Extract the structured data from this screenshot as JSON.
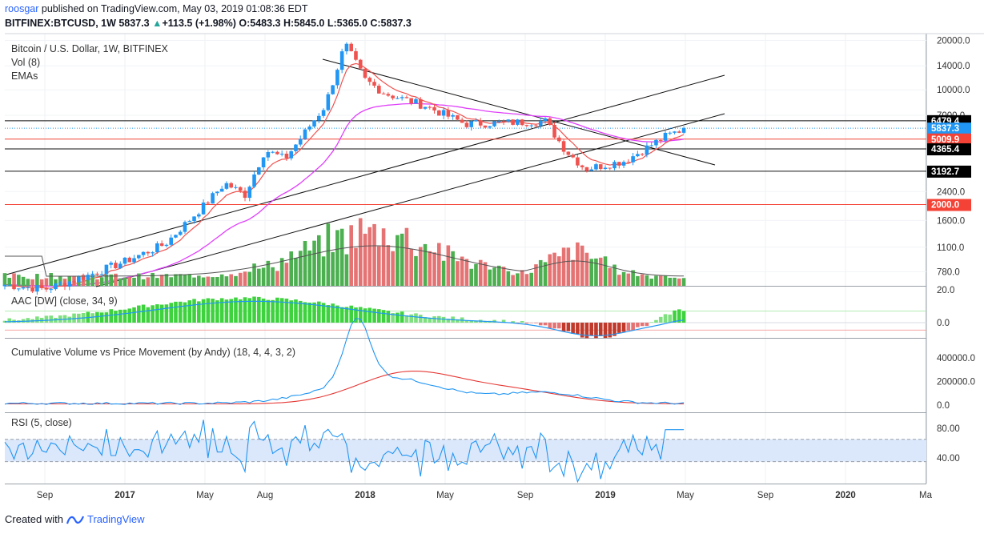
{
  "header": {
    "author": "roosgar",
    "published_text": " published on TradingView.com, May 03, 2019 01:08:36 EDT",
    "symbol_line": "BITFINEX:BTCUSD, 1W 5837.3",
    "change_arrow": "▲",
    "change_text": "+113.5 (+1.98%)",
    "ohlc": "O:5483.3 H:5845.0 L:5365.0 C:5837.3"
  },
  "legend": {
    "title": "Bitcoin / U.S. Dollar, 1W, BITFINEX",
    "vol": "Vol (8)",
    "emas": "EMAs",
    "aac": "AAC [DW] (close, 34, 9)",
    "cvpm": "Cumulative Volume vs Price Movement (by Andy) (18, 4, 4, 3, 2)",
    "rsi": "RSI (5, close)"
  },
  "footer": {
    "created_with": "Created with",
    "brand": "TradingView"
  },
  "colors": {
    "up": "#2196f3",
    "down": "#ef5350",
    "vol_up": "#4caf50",
    "vol_down": "#e57373",
    "ema_fast": "#ef5350",
    "ema_slow": "#e040fb",
    "rsi_line": "#2196f3",
    "rsi_band": "#dbe7fb",
    "badge_black": "#000000",
    "badge_red": "#f44336",
    "badge_blue": "#2196f3"
  },
  "chart_data": [
    {
      "type": "candlestick",
      "name": "Bitcoin / U.S. Dollar, 1W, BITFINEX",
      "scale": "log",
      "y_ticks": [
        "20000.0",
        "14000.0",
        "10000.0",
        "7000.0",
        "2400.0",
        "1600.0",
        "1100.0",
        "780.0"
      ],
      "x_ticks": [
        "Sep",
        "2017",
        "May",
        "Aug",
        "2018",
        "May",
        "Sep",
        "2019",
        "May",
        "Sep",
        "2020",
        "Ma"
      ],
      "level_lines": [
        {
          "value": "6479.4",
          "color": "black"
        },
        {
          "value": "5837.3",
          "color": "blue"
        },
        {
          "value": "5009.9",
          "color": "red"
        },
        {
          "value": "4365.4",
          "color": "black"
        },
        {
          "value": "3192.7",
          "color": "black"
        },
        {
          "value": "2000.0",
          "color": "red"
        }
      ],
      "approx_weekly_close_path": [
        {
          "date": "2016-07",
          "close": 650
        },
        {
          "date": "2016-09",
          "close": 610
        },
        {
          "date": "2016-11",
          "close": 730
        },
        {
          "date": "2017-01",
          "close": 900
        },
        {
          "date": "2017-03",
          "close": 1150
        },
        {
          "date": "2017-05",
          "close": 2000
        },
        {
          "date": "2017-06",
          "close": 2700
        },
        {
          "date": "2017-07",
          "close": 2300
        },
        {
          "date": "2017-08",
          "close": 4300
        },
        {
          "date": "2017-09",
          "close": 3800
        },
        {
          "date": "2017-11",
          "close": 8000
        },
        {
          "date": "2017-12",
          "close": 19000
        },
        {
          "date": "2018-01",
          "close": 11500
        },
        {
          "date": "2018-02",
          "close": 9500
        },
        {
          "date": "2018-04",
          "close": 8000
        },
        {
          "date": "2018-06",
          "close": 6200
        },
        {
          "date": "2018-08",
          "close": 6300
        },
        {
          "date": "2018-10",
          "close": 6450
        },
        {
          "date": "2018-11",
          "close": 4300
        },
        {
          "date": "2018-12",
          "close": 3300
        },
        {
          "date": "2019-02",
          "close": 3700
        },
        {
          "date": "2019-04",
          "close": 5200
        },
        {
          "date": "2019-05",
          "close": 5837.3
        }
      ]
    },
    {
      "type": "bar",
      "name": "Vol (8)"
    },
    {
      "type": "histogram",
      "name": "AAC [DW] (close, 34, 9)",
      "y_ticks": [
        "20.0",
        "0.0"
      ]
    },
    {
      "type": "line",
      "name": "Cumulative Volume vs Price Movement (by Andy) (18, 4, 4, 3, 2)",
      "y_ticks": [
        "400000.0",
        "200000.0",
        "0.0"
      ]
    },
    {
      "type": "line",
      "name": "RSI (5, close)",
      "y_ticks": [
        "80.00",
        "40.00"
      ],
      "band": [
        35,
        65
      ]
    }
  ]
}
